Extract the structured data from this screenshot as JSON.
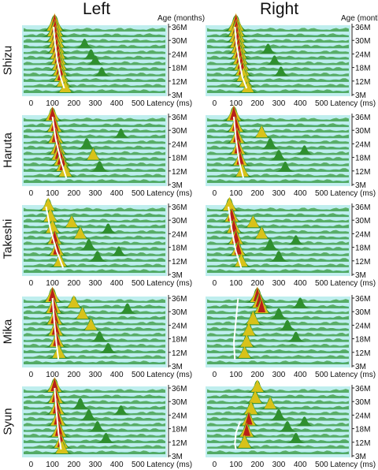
{
  "figure": {
    "columns": [
      "Left",
      "Right"
    ],
    "x_axis_label": "Latency (ms)",
    "y_axis_label": "Age (months)"
  },
  "chart_data": [
    {
      "type": "area",
      "subject": "Shizu",
      "hemisphere": "Left",
      "x_ticks": [
        0,
        100,
        200,
        300,
        400,
        500
      ],
      "x_range": [
        -20,
        620
      ],
      "age_ticks": [
        "36M",
        "30M",
        "24M",
        "18M",
        "12M",
        "3M"
      ],
      "rows": 12,
      "peaks": [
        [
          0,
          110,
          0.95
        ],
        [
          1,
          112,
          0.95
        ],
        [
          2,
          115,
          0.9
        ],
        [
          3,
          118,
          0.9
        ],
        [
          4,
          120,
          0.85
        ],
        [
          5,
          125,
          0.85
        ],
        [
          6,
          128,
          0.8
        ],
        [
          7,
          132,
          0.75
        ],
        [
          8,
          135,
          0.7
        ],
        [
          9,
          140,
          0.7
        ],
        [
          10,
          150,
          0.6
        ],
        [
          11,
          160,
          0.5
        ],
        [
          3,
          250,
          0.3
        ],
        [
          5,
          280,
          0.35
        ],
        [
          6,
          300,
          0.3
        ],
        [
          8,
          330,
          0.25
        ]
      ],
      "trace": [
        [
          0,
          105
        ],
        [
          3,
          112
        ],
        [
          6,
          122
        ],
        [
          9,
          138
        ],
        [
          11,
          155
        ]
      ]
    },
    {
      "type": "area",
      "subject": "Shizu",
      "hemisphere": "Right",
      "x_ticks": [
        0,
        100,
        200,
        300,
        400,
        500
      ],
      "x_range": [
        -20,
        620
      ],
      "age_ticks": [
        "36M",
        "30M",
        "24M",
        "18M",
        "12M",
        "3M"
      ],
      "rows": 12,
      "peaks": [
        [
          0,
          100,
          0.95
        ],
        [
          1,
          102,
          0.95
        ],
        [
          2,
          105,
          0.9
        ],
        [
          3,
          108,
          0.9
        ],
        [
          4,
          112,
          0.85
        ],
        [
          5,
          115,
          0.85
        ],
        [
          6,
          120,
          0.8
        ],
        [
          7,
          125,
          0.75
        ],
        [
          8,
          130,
          0.7
        ],
        [
          9,
          135,
          0.65
        ],
        [
          10,
          145,
          0.55
        ],
        [
          11,
          155,
          0.5
        ],
        [
          4,
          250,
          0.35
        ],
        [
          6,
          280,
          0.3
        ],
        [
          8,
          310,
          0.3
        ]
      ],
      "trace": [
        [
          0,
          95
        ],
        [
          3,
          102
        ],
        [
          6,
          115
        ],
        [
          9,
          130
        ],
        [
          11,
          150
        ]
      ]
    },
    {
      "type": "area",
      "subject": "Haruta",
      "hemisphere": "Left",
      "x_ticks": [
        0,
        100,
        200,
        300,
        400,
        500
      ],
      "x_range": [
        -20,
        620
      ],
      "age_ticks": [
        "36M",
        "30M",
        "24M",
        "18M",
        "12M",
        "3M"
      ],
      "rows": 12,
      "peaks": [
        [
          0,
          100,
          0.7
        ],
        [
          2,
          110,
          0.75
        ],
        [
          4,
          115,
          0.8
        ],
        [
          6,
          125,
          0.85
        ],
        [
          7,
          130,
          0.8
        ],
        [
          8,
          140,
          0.75
        ],
        [
          9,
          150,
          0.7
        ],
        [
          10,
          160,
          0.6
        ],
        [
          5,
          260,
          0.45
        ],
        [
          7,
          290,
          0.5
        ],
        [
          9,
          320,
          0.4
        ],
        [
          3,
          420,
          0.3
        ]
      ],
      "trace": [
        [
          0,
          100
        ],
        [
          4,
          115
        ],
        [
          8,
          140
        ],
        [
          11,
          165
        ]
      ]
    },
    {
      "type": "area",
      "subject": "Haruta",
      "hemisphere": "Right",
      "x_ticks": [
        0,
        100,
        200,
        300,
        400,
        500
      ],
      "x_range": [
        -20,
        620
      ],
      "age_ticks": [
        "36M",
        "30M",
        "24M",
        "18M",
        "12M",
        "3M"
      ],
      "rows": 12,
      "peaks": [
        [
          0,
          90,
          0.8
        ],
        [
          2,
          100,
          0.8
        ],
        [
          4,
          105,
          0.8
        ],
        [
          6,
          110,
          0.75
        ],
        [
          8,
          120,
          0.7
        ],
        [
          10,
          130,
          0.6
        ],
        [
          3,
          220,
          0.5
        ],
        [
          5,
          260,
          0.45
        ],
        [
          7,
          300,
          0.4
        ],
        [
          9,
          330,
          0.35
        ],
        [
          6,
          420,
          0.3
        ]
      ],
      "trace": [
        [
          0,
          90
        ],
        [
          4,
          100
        ],
        [
          8,
          115
        ],
        [
          11,
          135
        ]
      ]
    },
    {
      "type": "area",
      "subject": "Takeshi",
      "hemisphere": "Left",
      "x_ticks": [
        0,
        100,
        200,
        300,
        400,
        500
      ],
      "x_range": [
        -20,
        620
      ],
      "age_ticks": [
        "36M",
        "30M",
        "24M",
        "18M",
        "12M",
        "3M"
      ],
      "rows": 12,
      "peaks": [
        [
          0,
          80,
          0.6
        ],
        [
          2,
          90,
          0.65
        ],
        [
          4,
          100,
          0.65
        ],
        [
          6,
          110,
          0.7
        ],
        [
          8,
          120,
          0.7
        ],
        [
          10,
          135,
          0.6
        ],
        [
          3,
          190,
          0.5
        ],
        [
          5,
          230,
          0.5
        ],
        [
          7,
          270,
          0.45
        ],
        [
          9,
          310,
          0.4
        ],
        [
          4,
          360,
          0.35
        ],
        [
          8,
          410,
          0.3
        ]
      ],
      "trace": [
        [
          0,
          70
        ],
        [
          4,
          90
        ],
        [
          8,
          120
        ],
        [
          11,
          150
        ]
      ]
    },
    {
      "type": "area",
      "subject": "Takeshi",
      "hemisphere": "Right",
      "x_ticks": [
        0,
        100,
        200,
        300,
        400,
        500
      ],
      "x_range": [
        -20,
        620
      ],
      "age_ticks": [
        "36M",
        "30M",
        "24M",
        "18M",
        "12M",
        "3M"
      ],
      "rows": 12,
      "peaks": [
        [
          0,
          70,
          0.65
        ],
        [
          2,
          80,
          0.7
        ],
        [
          4,
          90,
          0.7
        ],
        [
          6,
          100,
          0.75
        ],
        [
          8,
          110,
          0.7
        ],
        [
          10,
          125,
          0.6
        ],
        [
          3,
          180,
          0.5
        ],
        [
          5,
          220,
          0.5
        ],
        [
          7,
          260,
          0.45
        ],
        [
          9,
          300,
          0.4
        ],
        [
          6,
          380,
          0.3
        ]
      ],
      "trace": [
        [
          0,
          65
        ],
        [
          4,
          80
        ],
        [
          8,
          100
        ],
        [
          11,
          125
        ]
      ]
    },
    {
      "type": "area",
      "subject": "Mika",
      "hemisphere": "Left",
      "x_ticks": [
        0,
        100,
        200,
        300,
        400,
        500
      ],
      "x_range": [
        -20,
        620
      ],
      "age_ticks": [
        "36M",
        "30M",
        "24M",
        "18M",
        "12M",
        "3M"
      ],
      "rows": 12,
      "peaks": [
        [
          0,
          100,
          0.8
        ],
        [
          2,
          105,
          0.85
        ],
        [
          4,
          110,
          0.85
        ],
        [
          6,
          115,
          0.8
        ],
        [
          8,
          120,
          0.75
        ],
        [
          10,
          130,
          0.65
        ],
        [
          1,
          200,
          0.55
        ],
        [
          3,
          240,
          0.5
        ],
        [
          5,
          280,
          0.5
        ],
        [
          7,
          320,
          0.4
        ],
        [
          9,
          360,
          0.35
        ],
        [
          2,
          450,
          0.4
        ]
      ],
      "trace": [
        [
          0,
          100
        ],
        [
          4,
          108
        ],
        [
          8,
          118
        ],
        [
          11,
          128
        ]
      ]
    },
    {
      "type": "area",
      "subject": "Mika",
      "hemisphere": "Right",
      "x_ticks": [
        0,
        100,
        200,
        300,
        400,
        500
      ],
      "x_range": [
        -20,
        620
      ],
      "age_ticks": [
        "36M",
        "30M",
        "24M",
        "18M",
        "12M",
        "3M"
      ],
      "rows": 12,
      "peaks": [
        [
          0,
          200,
          0.8
        ],
        [
          1,
          210,
          0.8
        ],
        [
          2,
          220,
          0.75
        ],
        [
          4,
          180,
          0.65
        ],
        [
          6,
          160,
          0.6
        ],
        [
          8,
          150,
          0.55
        ],
        [
          10,
          140,
          0.5
        ],
        [
          3,
          300,
          0.45
        ],
        [
          5,
          340,
          0.4
        ],
        [
          7,
          380,
          0.35
        ],
        [
          1,
          400,
          0.4
        ]
      ],
      "trace": [
        [
          0,
          110
        ],
        [
          4,
          100
        ],
        [
          8,
          90
        ],
        [
          11,
          95
        ]
      ]
    },
    {
      "type": "area",
      "subject": "Syun",
      "hemisphere": "Left",
      "x_ticks": [
        0,
        100,
        200,
        300,
        400,
        500
      ],
      "x_range": [
        -20,
        620
      ],
      "age_ticks": [
        "36M",
        "30M",
        "24M",
        "18M",
        "12M",
        "3M"
      ],
      "rows": 12,
      "peaks": [
        [
          0,
          110,
          0.75
        ],
        [
          2,
          115,
          0.8
        ],
        [
          4,
          120,
          0.85
        ],
        [
          6,
          125,
          0.85
        ],
        [
          8,
          130,
          0.8
        ],
        [
          10,
          140,
          0.7
        ],
        [
          11,
          145,
          0.6
        ],
        [
          3,
          230,
          0.45
        ],
        [
          5,
          270,
          0.45
        ],
        [
          7,
          310,
          0.4
        ],
        [
          9,
          350,
          0.35
        ],
        [
          4,
          420,
          0.3
        ]
      ],
      "trace": [
        [
          0,
          110
        ],
        [
          4,
          118
        ],
        [
          8,
          128
        ],
        [
          11,
          140
        ]
      ]
    },
    {
      "type": "area",
      "subject": "Syun",
      "hemisphere": "Right",
      "x_ticks": [
        0,
        100,
        200,
        300,
        400,
        500
      ],
      "x_range": [
        -20,
        620
      ],
      "age_ticks": [
        "36M",
        "30M",
        "24M",
        "18M",
        "12M",
        "3M"
      ],
      "rows": 12,
      "peaks": [
        [
          0,
          200,
          0.55
        ],
        [
          2,
          190,
          0.6
        ],
        [
          4,
          170,
          0.65
        ],
        [
          6,
          160,
          0.7
        ],
        [
          8,
          150,
          0.7
        ],
        [
          10,
          140,
          0.6
        ],
        [
          3,
          260,
          0.5
        ],
        [
          5,
          300,
          0.45
        ],
        [
          7,
          340,
          0.4
        ],
        [
          9,
          380,
          0.35
        ],
        [
          6,
          420,
          0.3
        ]
      ],
      "trace": [
        [
          6,
          120
        ],
        [
          8,
          100
        ],
        [
          10,
          95
        ],
        [
          11,
          100
        ]
      ]
    }
  ]
}
